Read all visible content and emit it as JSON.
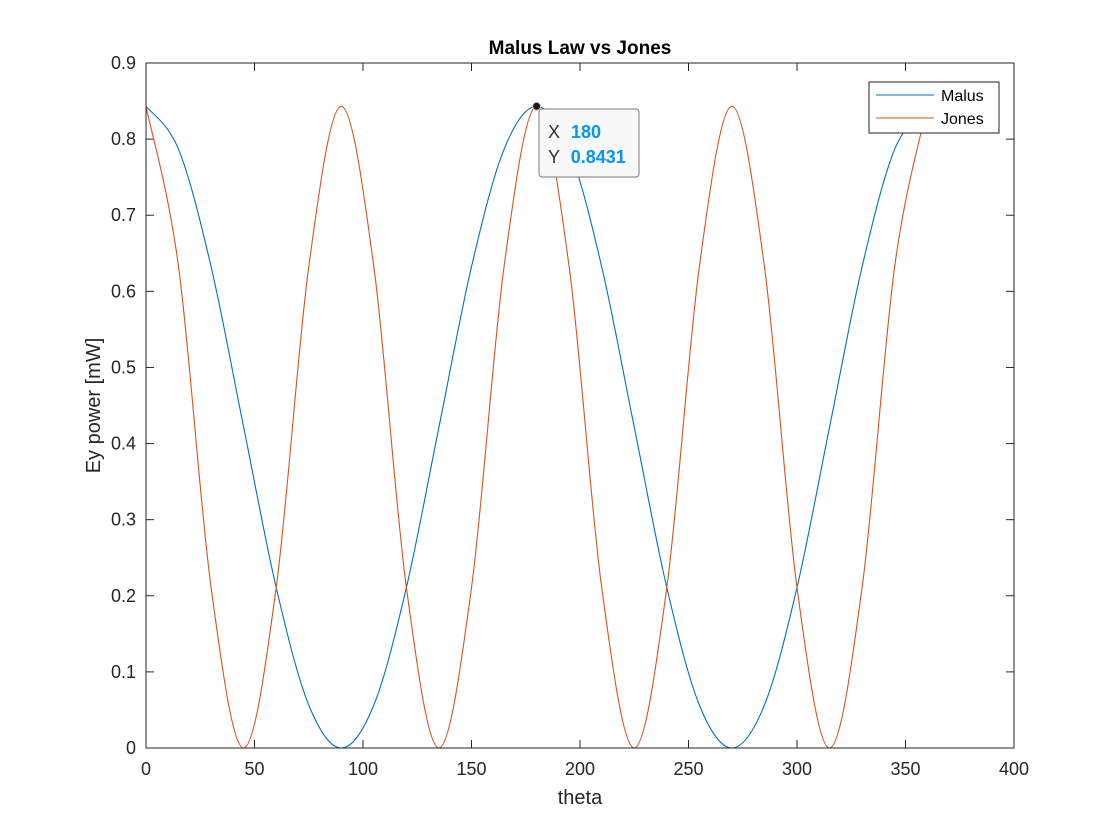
{
  "chart_data": {
    "type": "line",
    "title": "Malus Law vs Jones",
    "xlabel": "theta",
    "ylabel": "Ey power [mW]",
    "xlim": [
      0,
      400
    ],
    "ylim": [
      0,
      0.9
    ],
    "xticks": [
      0,
      50,
      100,
      150,
      200,
      250,
      300,
      350,
      400
    ],
    "xtick_labels": [
      "0",
      "50",
      "100",
      "150",
      "200",
      "250",
      "300",
      "350",
      "400"
    ],
    "yticks": [
      0,
      0.1,
      0.2,
      0.3,
      0.4,
      0.5,
      0.6,
      0.7,
      0.8,
      0.9
    ],
    "ytick_labels": [
      "0",
      "0.1",
      "0.2",
      "0.3",
      "0.4",
      "0.5",
      "0.6",
      "0.7",
      "0.8",
      "0.9"
    ],
    "grid": false,
    "legend_position": "top-right",
    "series": [
      {
        "name": "Malus",
        "color": "#0072BD",
        "x": [
          0,
          15,
          30,
          45,
          60,
          75,
          90,
          105,
          120,
          135,
          150,
          165,
          180,
          195,
          210,
          225,
          240,
          255,
          270,
          285,
          300,
          315,
          330,
          345,
          360
        ],
        "values": [
          0.8431,
          0.7866,
          0.6323,
          0.4216,
          0.2108,
          0.0565,
          0,
          0.0565,
          0.2108,
          0.4216,
          0.6323,
          0.7866,
          0.8431,
          0.7866,
          0.6323,
          0.4216,
          0.2108,
          0.0565,
          0,
          0.0565,
          0.2108,
          0.4216,
          0.6323,
          0.7866,
          0.8431
        ]
      },
      {
        "name": "Jones",
        "color": "#D95319",
        "x": [
          0,
          15,
          30,
          45,
          60,
          75,
          90,
          105,
          120,
          135,
          150,
          165,
          180,
          195,
          210,
          225,
          240,
          255,
          270,
          285,
          300,
          315,
          330,
          345,
          360
        ],
        "values": [
          0.8431,
          0.6323,
          0.2108,
          0,
          0.2108,
          0.6323,
          0.8431,
          0.6323,
          0.2108,
          0,
          0.2108,
          0.6323,
          0.8431,
          0.6323,
          0.2108,
          0,
          0.2108,
          0.6323,
          0.8431,
          0.6323,
          0.2108,
          0,
          0.2108,
          0.6323,
          0.8431
        ]
      }
    ],
    "datatip": {
      "x": 180,
      "y": 0.8431,
      "x_label": "X",
      "x_value": "180",
      "y_label": "Y",
      "y_value": "0.8431",
      "value_color": "#0095FF"
    }
  }
}
